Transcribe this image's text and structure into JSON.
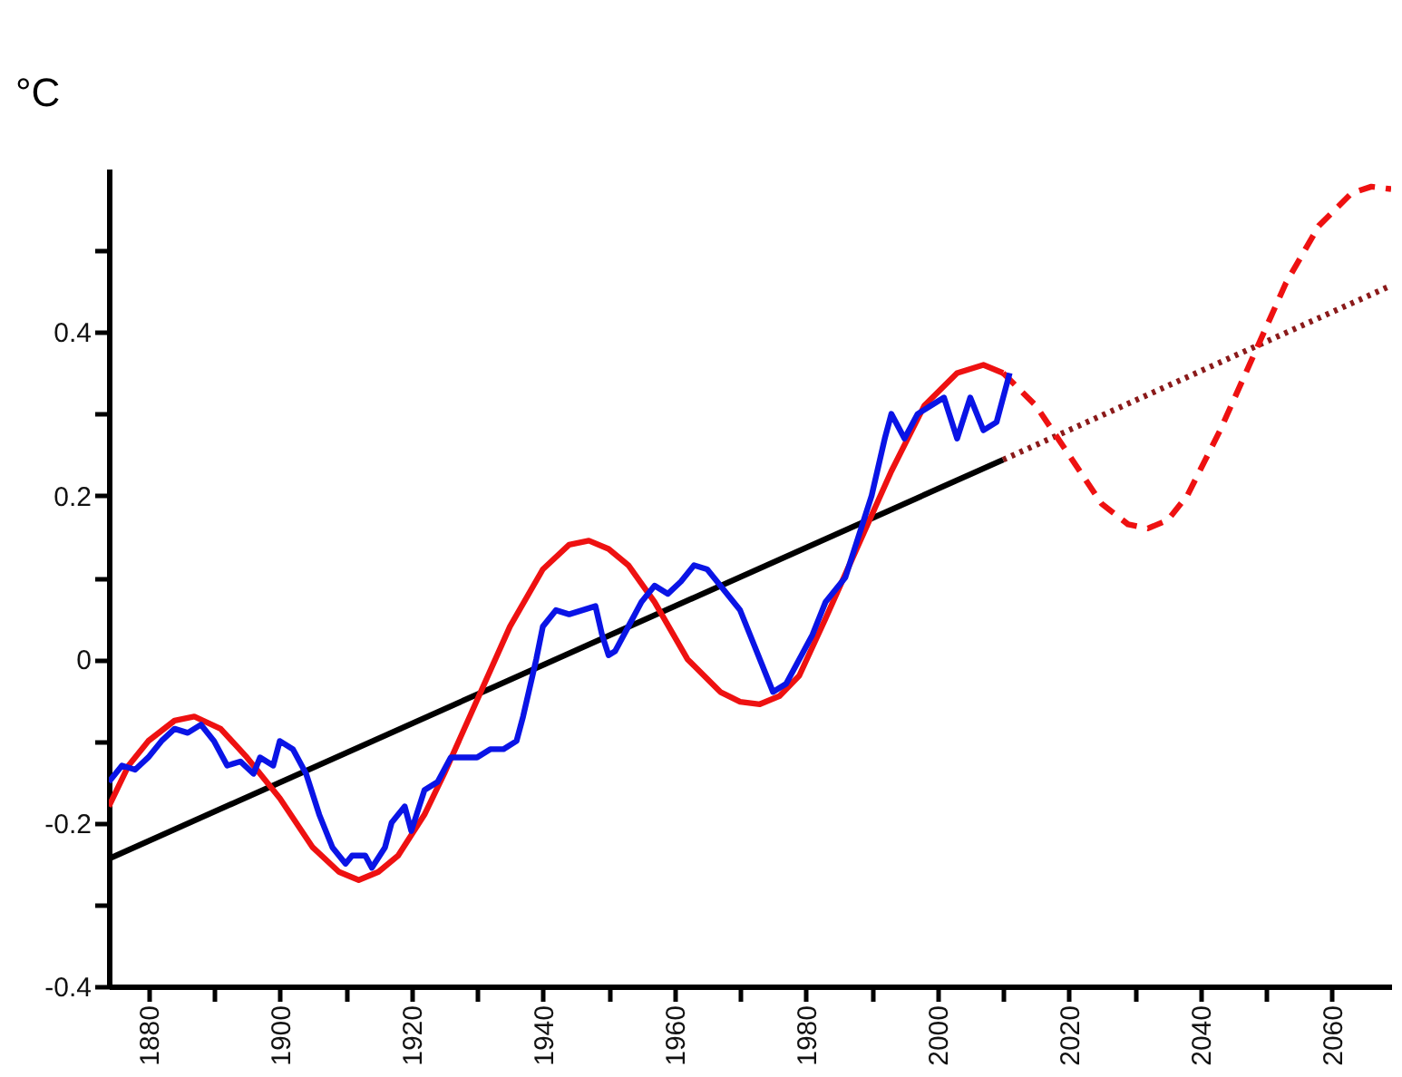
{
  "chart_data": {
    "type": "line",
    "ylabel": "°C",
    "xlim": [
      1874,
      2069
    ],
    "ylim": [
      -0.4,
      0.6
    ],
    "xticks": [
      1880,
      {
        "value": 1890,
        "label": null
      },
      1900,
      {
        "value": 1910,
        "label": null
      },
      1920,
      {
        "value": 1930,
        "label": null
      },
      1940,
      {
        "value": 1950,
        "label": null
      },
      1960,
      {
        "value": 1970,
        "label": null
      },
      1980,
      {
        "value": 1990,
        "label": null
      },
      2000,
      {
        "value": 2010,
        "label": null
      },
      2020,
      {
        "value": 2030,
        "label": null
      },
      2040,
      {
        "value": 2050,
        "label": null
      },
      2060
    ],
    "yticks": [
      -0.4,
      {
        "value": -0.3,
        "label": null
      },
      -0.2,
      {
        "value": -0.1,
        "label": null
      },
      0,
      {
        "value": 0.1,
        "label": null
      },
      0.2,
      {
        "value": 0.3,
        "label": null
      },
      0.4,
      {
        "value": 0.5,
        "label": null
      }
    ],
    "grid": false,
    "series": [
      {
        "color": "#000000",
        "line_style": "solid",
        "x": [
          1874,
          2010
        ],
        "values": [
          -0.244,
          0.244
        ]
      },
      {
        "color": "#8b1a1a",
        "line_style": "dotted",
        "x": [
          2010,
          2069
        ],
        "values": [
          0.244,
          0.457
        ]
      },
      {
        "color": "#ee1111",
        "line_style": "solid",
        "x": [
          1874,
          1877,
          1880,
          1884,
          1887,
          1891,
          1895,
          1900,
          1905,
          1909,
          1912,
          1915,
          1918,
          1922,
          1925,
          1930,
          1935,
          1940,
          1944,
          1947,
          1950,
          1953,
          1957,
          1962,
          1967,
          1970,
          1973,
          1976,
          1979,
          1983,
          1988,
          1993,
          1998,
          2003,
          2007,
          2010
        ],
        "values": [
          -0.18,
          -0.13,
          -0.1,
          -0.075,
          -0.07,
          -0.085,
          -0.12,
          -0.17,
          -0.23,
          -0.26,
          -0.27,
          -0.26,
          -0.24,
          -0.19,
          -0.14,
          -0.05,
          0.04,
          0.11,
          0.14,
          0.145,
          0.135,
          0.115,
          0.07,
          0.0,
          -0.04,
          -0.052,
          -0.055,
          -0.045,
          -0.02,
          0.05,
          0.14,
          0.23,
          0.31,
          0.35,
          0.36,
          0.35
        ]
      },
      {
        "color": "#ee1111",
        "line_style": "dashed",
        "x": [
          2010,
          2015,
          2020,
          2025,
          2029,
          2032,
          2035,
          2038,
          2043,
          2048,
          2053,
          2058,
          2063,
          2066,
          2069
        ],
        "values": [
          0.35,
          0.31,
          0.25,
          0.19,
          0.165,
          0.16,
          0.17,
          0.2,
          0.28,
          0.37,
          0.46,
          0.53,
          0.57,
          0.578,
          0.575
        ]
      },
      {
        "color": "#0a14e6",
        "line_style": "solid",
        "x": [
          1874,
          1876,
          1878,
          1880,
          1882,
          1884,
          1886,
          1888,
          1890,
          1892,
          1894,
          1896,
          1897,
          1899,
          1900,
          1902,
          1904,
          1906,
          1908,
          1910,
          1911,
          1913,
          1914,
          1916,
          1917,
          1919,
          1920,
          1922,
          1924,
          1926,
          1928,
          1930,
          1932,
          1934,
          1936,
          1937,
          1939,
          1940,
          1942,
          1944,
          1946,
          1948,
          1949,
          1950,
          1951,
          1953,
          1955,
          1957,
          1959,
          1961,
          1963,
          1965,
          1966,
          1968,
          1970,
          1972,
          1974,
          1975,
          1977,
          1979,
          1981,
          1983,
          1984,
          1986,
          1988,
          1990,
          1992,
          1993,
          1995,
          1997,
          1999,
          2001,
          2003,
          2005,
          2007,
          2009,
          2011
        ],
        "values": [
          -0.15,
          -0.13,
          -0.135,
          -0.12,
          -0.1,
          -0.085,
          -0.09,
          -0.08,
          -0.1,
          -0.13,
          -0.125,
          -0.14,
          -0.12,
          -0.13,
          -0.1,
          -0.11,
          -0.14,
          -0.19,
          -0.23,
          -0.25,
          -0.24,
          -0.24,
          -0.255,
          -0.23,
          -0.2,
          -0.18,
          -0.21,
          -0.16,
          -0.15,
          -0.12,
          -0.12,
          -0.12,
          -0.11,
          -0.11,
          -0.1,
          -0.07,
          0.0,
          0.04,
          0.06,
          0.055,
          0.06,
          0.065,
          0.03,
          0.005,
          0.01,
          0.04,
          0.07,
          0.09,
          0.08,
          0.095,
          0.115,
          0.11,
          0.1,
          0.08,
          0.06,
          0.02,
          -0.02,
          -0.04,
          -0.03,
          0.0,
          0.03,
          0.07,
          0.08,
          0.1,
          0.15,
          0.2,
          0.27,
          0.3,
          0.27,
          0.3,
          0.31,
          0.32,
          0.27,
          0.32,
          0.28,
          0.29,
          0.35
        ]
      }
    ]
  }
}
